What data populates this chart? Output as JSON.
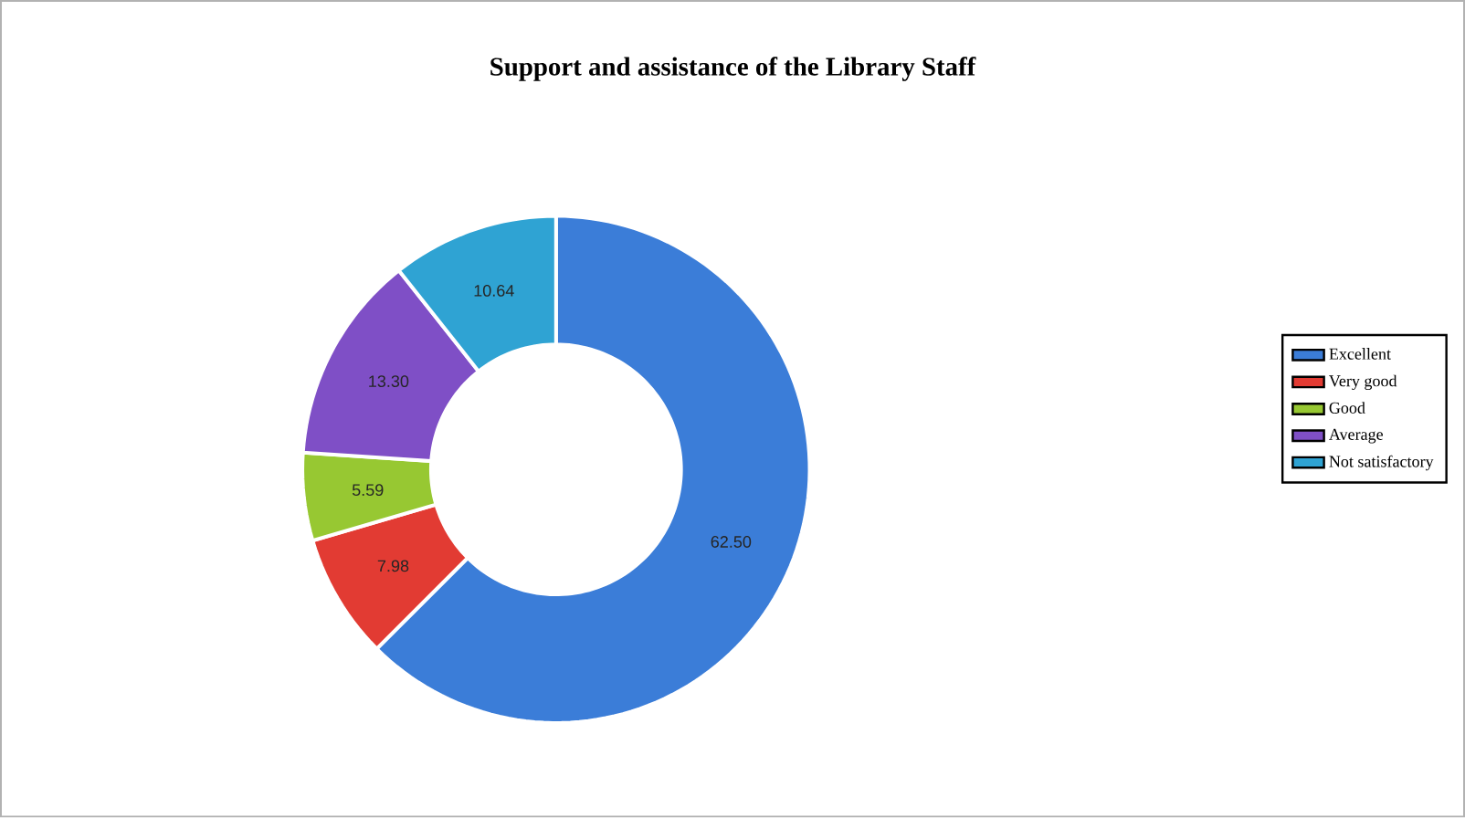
{
  "chart_data": {
    "type": "donut",
    "title": "Support and assistance of the Library Staff",
    "categories": [
      "Excellent",
      "Very good",
      "Good",
      "Average",
      "Not satisfactory"
    ],
    "values": [
      62.5,
      7.98,
      5.59,
      13.3,
      10.64
    ],
    "value_labels": [
      "62.50",
      "7.98",
      "5.59",
      "13.30",
      "10.64"
    ],
    "colors": [
      "#3b7dd8",
      "#e23b33",
      "#97c832",
      "#7f4fc6",
      "#2fa3d3"
    ],
    "legend": "right"
  }
}
